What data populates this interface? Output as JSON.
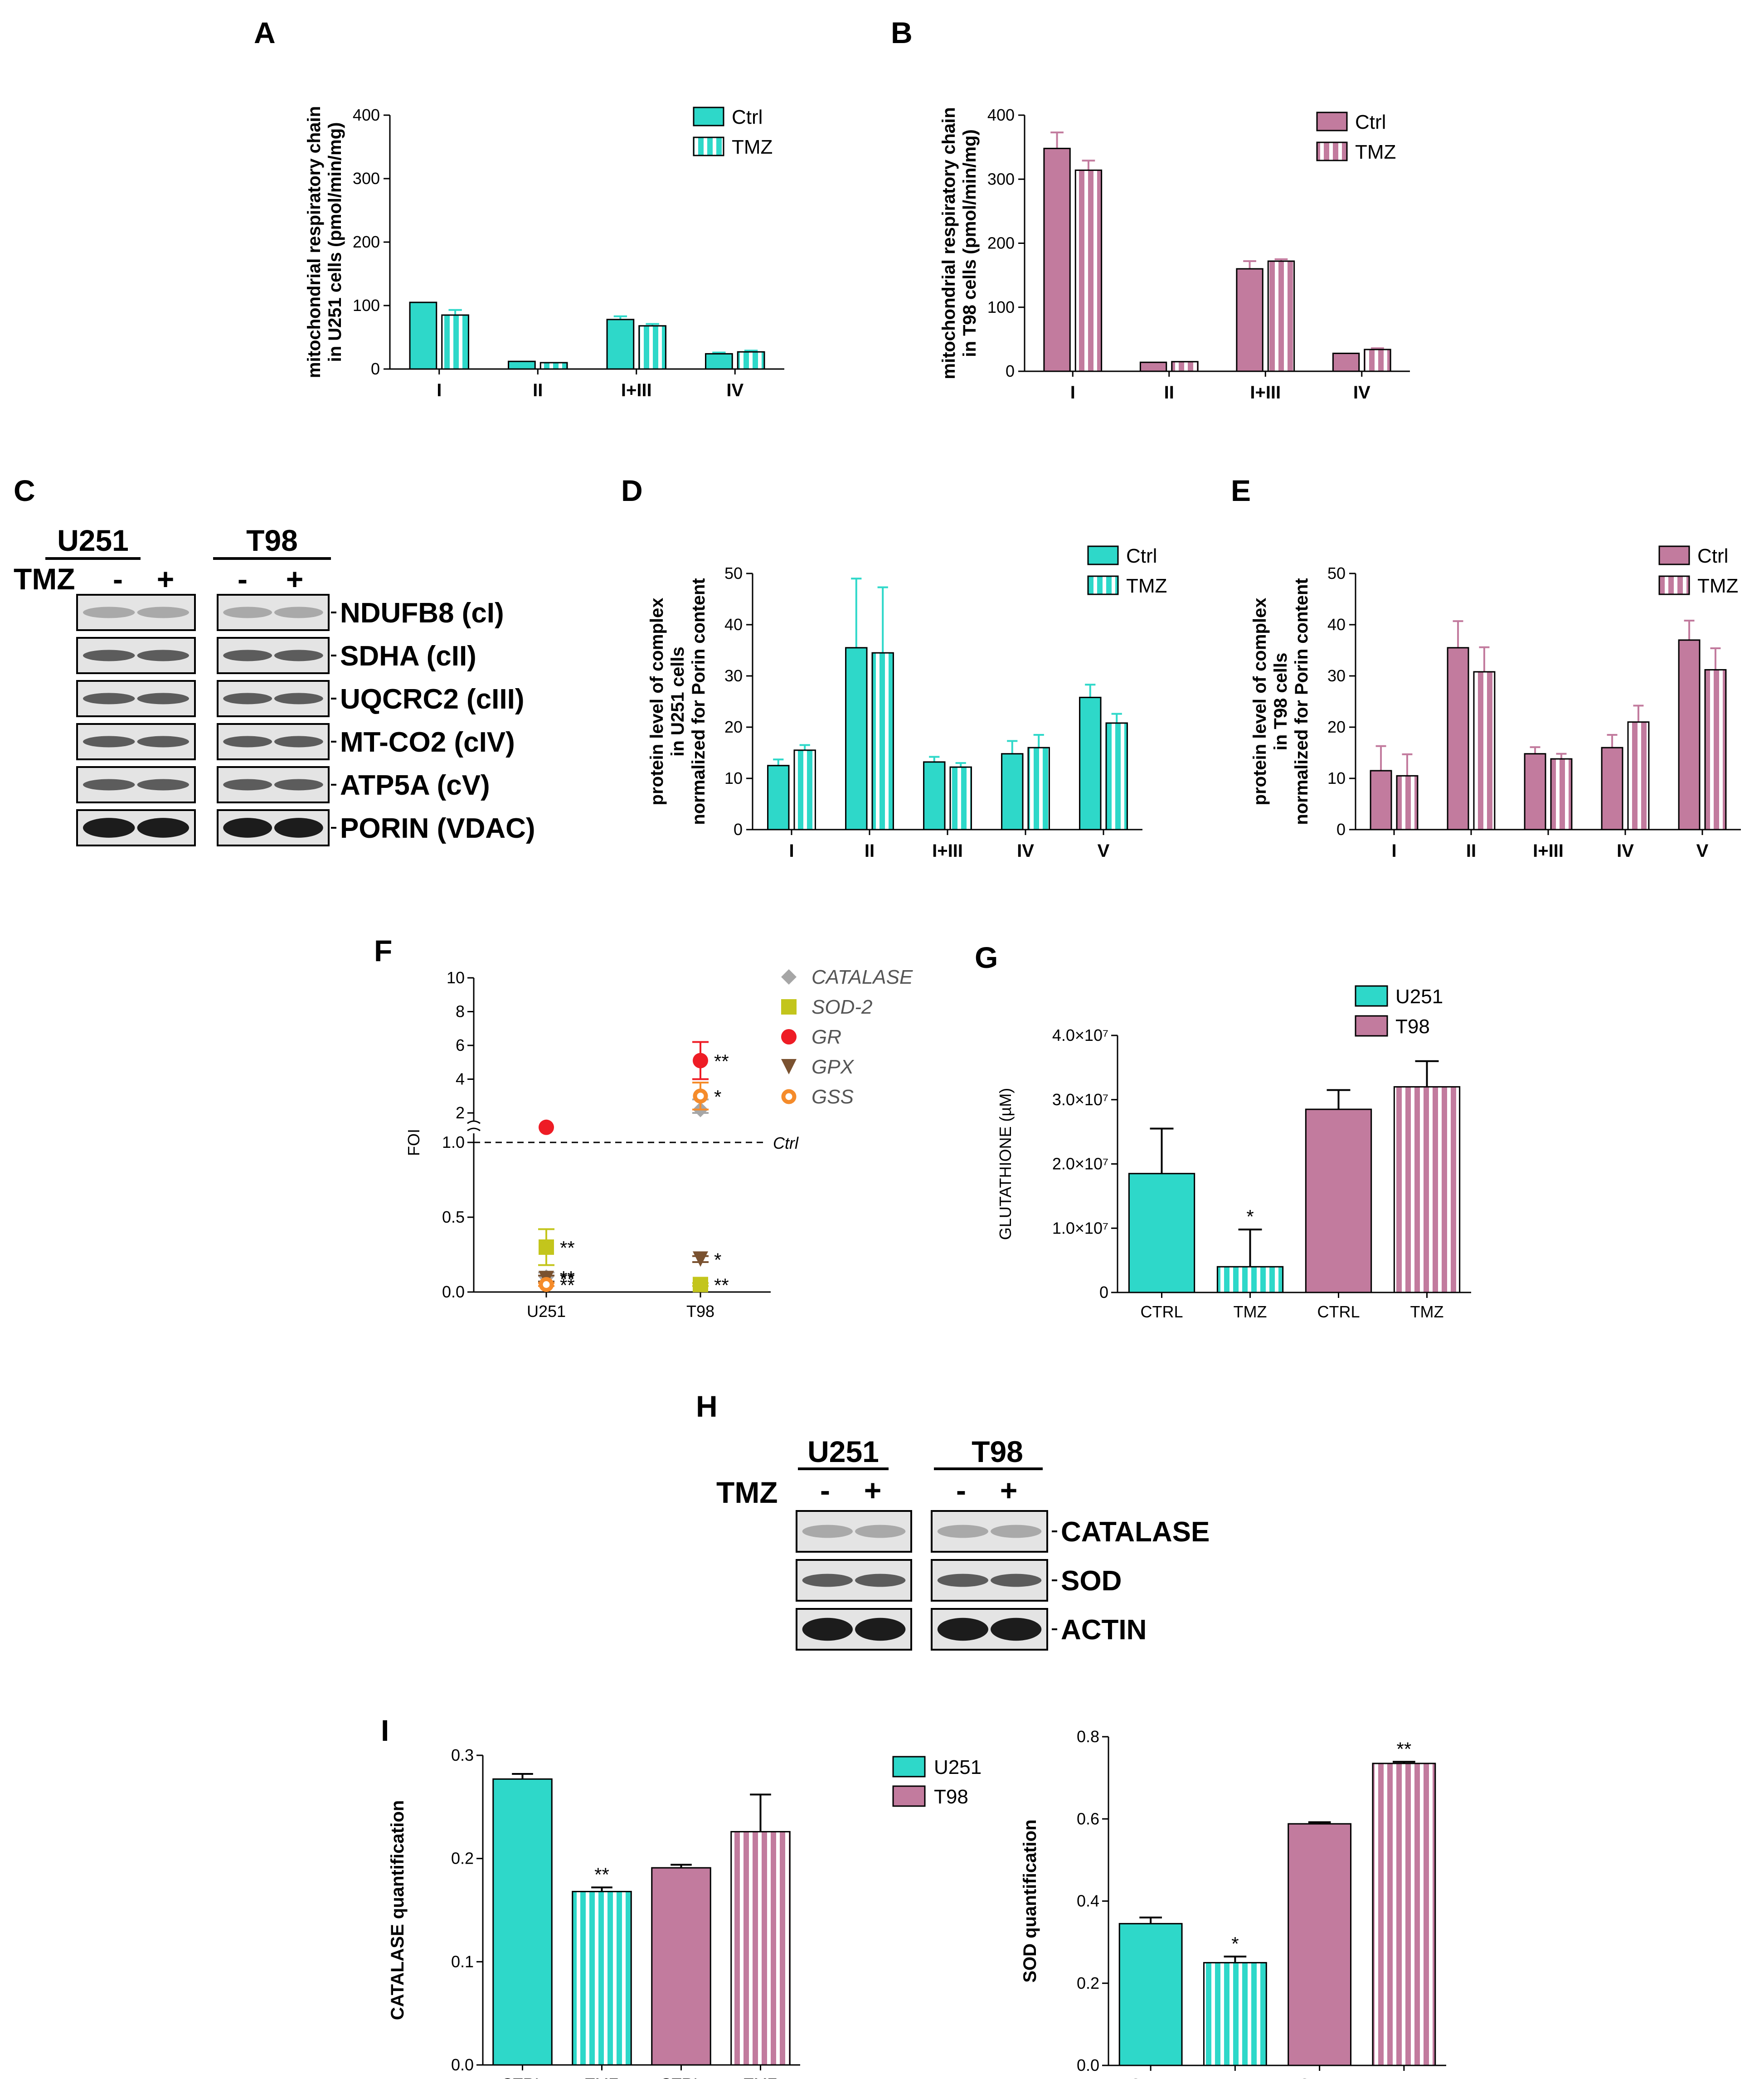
{
  "colors": {
    "u251": "#2ed8c9",
    "t98": "#c27b9e",
    "catalase": "#a6a6a6",
    "sod2": "#c3c51c",
    "gr": "#ee1c25",
    "gpx": "#7a5230",
    "gss": "#f58b2a"
  },
  "chart_data": [
    {
      "panel": "A",
      "type": "bar",
      "ylabel_lines": [
        "mitochondrial respiratory chain",
        "in U251 cells (pmol/min/mg)"
      ],
      "categories": [
        "I",
        "II",
        "I+III",
        "IV"
      ],
      "ylim": [
        0,
        400
      ],
      "yticks": [
        "0",
        "100",
        "200",
        "300",
        "400"
      ],
      "series": [
        {
          "name": "Ctrl",
          "color_key": "u251",
          "pattern": "solid",
          "values": [
            105,
            12,
            78,
            24
          ],
          "errors": [
            0,
            0,
            5,
            2
          ]
        },
        {
          "name": "TMZ",
          "color_key": "u251",
          "pattern": "striped",
          "values": [
            85,
            10,
            68,
            27
          ],
          "errors": [
            8,
            0,
            3,
            2
          ]
        }
      ],
      "legend": [
        "Ctrl",
        "TMZ"
      ]
    },
    {
      "panel": "B",
      "type": "bar",
      "ylabel_lines": [
        "mitochondrial respiratory chain",
        "in T98 cells (pmol/min/mg)"
      ],
      "categories": [
        "I",
        "II",
        "I+III",
        "IV"
      ],
      "ylim": [
        0,
        400
      ],
      "yticks": [
        "0",
        "100",
        "200",
        "300",
        "400"
      ],
      "series": [
        {
          "name": "Ctrl",
          "color_key": "t98",
          "pattern": "solid",
          "values": [
            348,
            14,
            160,
            28
          ],
          "errors": [
            25,
            0,
            12,
            0
          ]
        },
        {
          "name": "TMZ",
          "color_key": "t98",
          "pattern": "striped",
          "values": [
            314,
            15,
            172,
            34
          ],
          "errors": [
            15,
            0,
            3,
            2
          ]
        }
      ],
      "legend": [
        "Ctrl",
        "TMZ"
      ]
    },
    {
      "panel": "D",
      "type": "bar",
      "ylabel_lines": [
        "protein level of complex",
        "in U251 cells",
        "normalized for Porin content"
      ],
      "categories": [
        "I",
        "II",
        "I+III",
        "IV",
        "V"
      ],
      "ylim": [
        0,
        50
      ],
      "yticks": [
        "0",
        "10",
        "20",
        "30",
        "40",
        "50"
      ],
      "series": [
        {
          "name": "Ctrl",
          "color_key": "u251",
          "pattern": "solid",
          "values": [
            12.5,
            35.5,
            13.2,
            14.8,
            25.8
          ],
          "errors": [
            1.2,
            13.5,
            1.0,
            2.5,
            2.5
          ]
        },
        {
          "name": "TMZ",
          "color_key": "u251",
          "pattern": "striped",
          "values": [
            15.5,
            34.5,
            12.2,
            16.0,
            20.8
          ],
          "errors": [
            1.0,
            12.8,
            0.8,
            2.5,
            1.8
          ]
        }
      ],
      "legend": [
        "Ctrl",
        "TMZ"
      ]
    },
    {
      "panel": "E",
      "type": "bar",
      "ylabel_lines": [
        "protein level of complex",
        "in T98 cells",
        "normalized for Porin content"
      ],
      "categories": [
        "I",
        "II",
        "I+III",
        "IV",
        "V"
      ],
      "ylim": [
        0,
        50
      ],
      "yticks": [
        "0",
        "10",
        "20",
        "30",
        "40",
        "50"
      ],
      "series": [
        {
          "name": "Ctrl",
          "color_key": "t98",
          "pattern": "solid",
          "values": [
            11.5,
            35.5,
            14.8,
            16.0,
            37.0
          ],
          "errors": [
            4.8,
            5.2,
            1.3,
            2.5,
            3.8
          ]
        },
        {
          "name": "TMZ",
          "color_key": "t98",
          "pattern": "striped",
          "values": [
            10.5,
            30.8,
            13.8,
            21.0,
            31.2
          ],
          "errors": [
            4.2,
            4.8,
            1.0,
            3.2,
            4.2
          ]
        }
      ],
      "legend": [
        "Ctrl",
        "TMZ"
      ]
    },
    {
      "panel": "F",
      "type": "scatter",
      "ylabel": "FOI",
      "categories": [
        "U251",
        "T98"
      ],
      "reference_line": {
        "value": 1.0,
        "label": "Ctrl"
      },
      "y_upper_ticks": [
        "2",
        "4",
        "6",
        "8",
        "10"
      ],
      "y_lower_ticks": [
        "0.0",
        "0.5",
        "1.0"
      ],
      "series": [
        {
          "name": "CATALASE",
          "color_key": "catalase",
          "marker": "diamond",
          "values": [
            0.1,
            2.2
          ],
          "errors": [
            0.03,
            0.6
          ],
          "stars": [
            "**",
            ""
          ]
        },
        {
          "name": "SOD-2",
          "color_key": "sod2",
          "marker": "square",
          "values": [
            0.3,
            0.05
          ],
          "errors": [
            0.12,
            0.01
          ],
          "stars": [
            "**",
            "**"
          ]
        },
        {
          "name": "GR",
          "color_key": "gr",
          "marker": "circle",
          "values": [
            1.15,
            5.1
          ],
          "errors": [
            0,
            1.1
          ],
          "stars": [
            "",
            "**"
          ]
        },
        {
          "name": "GPX",
          "color_key": "gpx",
          "marker": "triangle-down",
          "values": [
            0.09,
            0.22
          ],
          "errors": [
            0.02,
            0.02
          ],
          "stars": [
            "**",
            "*"
          ]
        },
        {
          "name": "GSS",
          "color_key": "gss",
          "marker": "ring",
          "values": [
            0.05,
            3.0
          ],
          "errors": [
            0.01,
            0.8
          ],
          "stars": [
            "**",
            "*"
          ]
        }
      ]
    },
    {
      "panel": "G",
      "type": "bar",
      "ylabel": "GLUTATHIONE (µM)",
      "categories": [
        "CTRL",
        "TMZ",
        "CTRL",
        "TMZ"
      ],
      "ylim": [
        0,
        40000000
      ],
      "yticks": [
        "0",
        "1.0×10⁷",
        "2.0×10⁷",
        "3.0×10⁷",
        "4.0×10⁷"
      ],
      "bars": [
        {
          "value": 18500000,
          "error": 7000000,
          "color_key": "u251",
          "pattern": "solid",
          "star": ""
        },
        {
          "value": 4000000,
          "error": 5800000,
          "color_key": "u251",
          "pattern": "striped",
          "star": "*"
        },
        {
          "value": 28500000,
          "error": 3000000,
          "color_key": "t98",
          "pattern": "solid",
          "star": ""
        },
        {
          "value": 32000000,
          "error": 4000000,
          "color_key": "t98",
          "pattern": "striped",
          "star": ""
        }
      ],
      "legend": [
        "U251",
        "T98"
      ]
    },
    {
      "panel": "I-left",
      "type": "bar",
      "ylabel": "CATALASE quantification",
      "categories": [
        "CTRL",
        "TMZ",
        "CTRL",
        "TMZ"
      ],
      "ylim": [
        0,
        0.3
      ],
      "yticks": [
        "0.0",
        "0.1",
        "0.2",
        "0.3"
      ],
      "bars": [
        {
          "value": 0.277,
          "error": 0.005,
          "color_key": "u251",
          "pattern": "solid",
          "star": ""
        },
        {
          "value": 0.168,
          "error": 0.004,
          "color_key": "u251",
          "pattern": "striped",
          "star": "**"
        },
        {
          "value": 0.191,
          "error": 0.003,
          "color_key": "t98",
          "pattern": "solid",
          "star": ""
        },
        {
          "value": 0.226,
          "error": 0.036,
          "color_key": "t98",
          "pattern": "striped",
          "star": ""
        }
      ]
    },
    {
      "panel": "I-right",
      "type": "bar",
      "ylabel": "SOD quantification",
      "categories": [
        "CTRL",
        "TMZ",
        "CTRL",
        "TMZ"
      ],
      "ylim": [
        0,
        0.8
      ],
      "yticks": [
        "0.0",
        "0.2",
        "0.4",
        "0.6",
        "0.8"
      ],
      "bars": [
        {
          "value": 0.345,
          "error": 0.015,
          "color_key": "u251",
          "pattern": "solid",
          "star": ""
        },
        {
          "value": 0.25,
          "error": 0.015,
          "color_key": "u251",
          "pattern": "striped",
          "star": "*"
        },
        {
          "value": 0.588,
          "error": 0.004,
          "color_key": "t98",
          "pattern": "solid",
          "star": ""
        },
        {
          "value": 0.735,
          "error": 0.004,
          "color_key": "t98",
          "pattern": "striped",
          "star": "**"
        }
      ]
    }
  ],
  "panels": {
    "a": "A",
    "b": "B",
    "c": "C",
    "d": "D",
    "e": "E",
    "f": "F",
    "g": "G",
    "h": "H",
    "i": "I"
  },
  "blot_c": {
    "cell_lines": [
      "U251",
      "T98"
    ],
    "treatment_label": "TMZ",
    "lane_signs": [
      "-",
      "+",
      "-",
      "+"
    ],
    "proteins": [
      "NDUFB8 (cI)",
      "SDHA (cII)",
      "UQCRC2 (cIII)",
      "MT-CO2 (cIV)",
      "ATP5A (cV)",
      "PORIN (VDAC)"
    ]
  },
  "blot_h": {
    "cell_lines": [
      "U251",
      "T98"
    ],
    "treatment_label": "TMZ",
    "lane_signs": [
      "-",
      "+",
      "-",
      "+"
    ],
    "proteins": [
      "CATALASE",
      "SOD",
      "ACTIN"
    ]
  },
  "legend_i": [
    "U251",
    "T98"
  ]
}
